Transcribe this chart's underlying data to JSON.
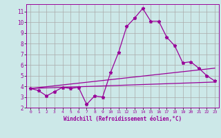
{
  "xlabel": "Windchill (Refroidissement éolien,°C)",
  "background_color": "#cce8e8",
  "line_color": "#990099",
  "grid_color": "#aaaaaa",
  "xlim": [
    -0.5,
    23.5
  ],
  "ylim": [
    2,
    11.7
  ],
  "yticks": [
    2,
    3,
    4,
    5,
    6,
    7,
    8,
    9,
    10,
    11
  ],
  "xticks": [
    0,
    1,
    2,
    3,
    4,
    5,
    6,
    7,
    8,
    9,
    10,
    11,
    12,
    13,
    14,
    15,
    16,
    17,
    18,
    19,
    20,
    21,
    22,
    23
  ],
  "line1_x": [
    0,
    1,
    2,
    3,
    4,
    5,
    6,
    7,
    8,
    9,
    10,
    11,
    12,
    13,
    14,
    15,
    16,
    17,
    18,
    19,
    20,
    21,
    22,
    23
  ],
  "line1_y": [
    3.8,
    3.6,
    3.1,
    3.5,
    3.9,
    3.8,
    3.9,
    2.3,
    3.1,
    3.0,
    5.3,
    7.2,
    9.6,
    10.4,
    11.3,
    10.1,
    10.1,
    8.6,
    7.8,
    6.2,
    6.3,
    5.7,
    5.0,
    4.5
  ],
  "line2_x": [
    0,
    23
  ],
  "line2_y": [
    3.8,
    4.4
  ],
  "line3_x": [
    0,
    23
  ],
  "line3_y": [
    3.8,
    5.7
  ]
}
